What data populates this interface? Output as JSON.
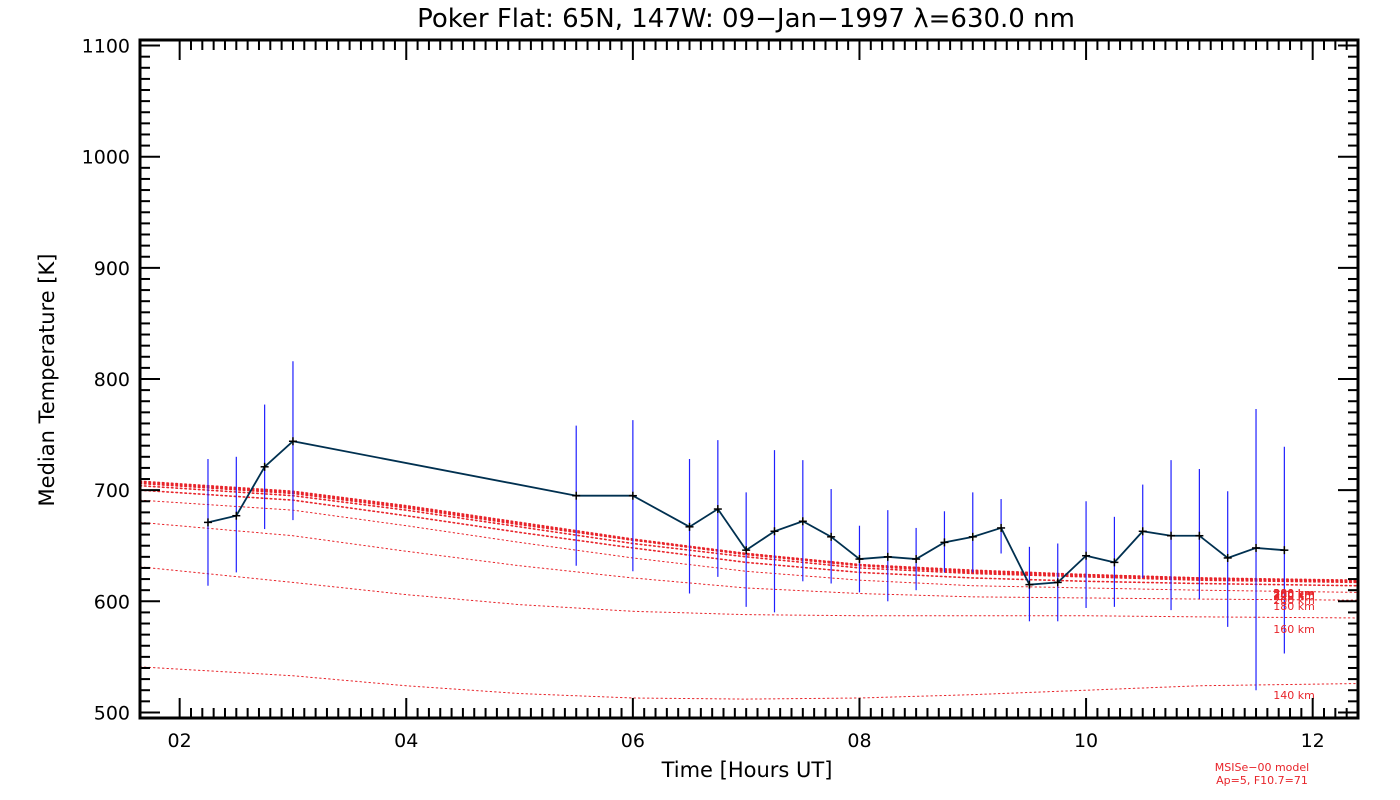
{
  "chart_data": {
    "type": "line",
    "title": "Poker Flat: 65N, 147W: 09−Jan−1997 λ=630.0 nm",
    "xlabel": "Time [Hours UT]",
    "ylabel": "Median Temperature [K]",
    "xlim": [
      1.65,
      12.4
    ],
    "ylim": [
      495,
      1105
    ],
    "x_ticks": [
      2,
      4,
      6,
      8,
      10,
      12
    ],
    "x_tick_labels": [
      "02",
      "04",
      "06",
      "08",
      "10",
      "12"
    ],
    "y_ticks": [
      500,
      600,
      700,
      800,
      900,
      1000,
      1100
    ],
    "y_tick_labels": [
      "500",
      "600",
      "700",
      "800",
      "900",
      "1000",
      "1100"
    ],
    "grid": false,
    "series": [
      {
        "color": "#003050",
        "x": [
          2.25,
          2.5,
          2.75,
          3.0,
          5.5,
          6.0,
          6.5,
          6.75,
          7.0,
          7.25,
          7.5,
          7.75,
          8.0,
          8.25,
          8.5,
          8.75,
          9.0,
          9.25,
          9.5,
          9.75,
          10.0,
          10.25,
          10.5,
          10.75,
          11.0,
          11.25,
          11.5,
          11.75
        ],
        "y": [
          671,
          677,
          721,
          744,
          695,
          695,
          667,
          683,
          646,
          663,
          672,
          658,
          638,
          640,
          638,
          653,
          658,
          666,
          615,
          617,
          641,
          635,
          663,
          659,
          659,
          639,
          648,
          646
        ],
        "err_lo": [
          614,
          626,
          665,
          673,
          632,
          627,
          607,
          622,
          595,
          590,
          618,
          616,
          608,
          600,
          610,
          626,
          626,
          643,
          582,
          582,
          594,
          595,
          621,
          592,
          602,
          577,
          520,
          553
        ],
        "err_hi": [
          728,
          730,
          777,
          816,
          758,
          763,
          728,
          745,
          698,
          736,
          727,
          701,
          668,
          682,
          666,
          681,
          698,
          692,
          649,
          652,
          690,
          676,
          705,
          727,
          719,
          699,
          773,
          739
        ]
      }
    ],
    "model_curves": [
      {
        "label": "140 km",
        "color": "#e8242a",
        "style": "dotted",
        "x": [
          1.65,
          3,
          4,
          5,
          6,
          7,
          8,
          9,
          10,
          11,
          12.4
        ],
        "y": [
          541,
          533,
          524,
          517,
          513,
          512,
          513,
          516,
          520,
          524,
          526
        ]
      },
      {
        "label": "160 km",
        "color": "#e8242a",
        "style": "dotted",
        "x": [
          1.65,
          3,
          4,
          5,
          6,
          7,
          8,
          9,
          10,
          11,
          12.4
        ],
        "y": [
          631,
          617,
          606,
          597,
          591,
          588,
          587,
          587,
          587,
          586,
          585
        ]
      },
      {
        "label": "180 km",
        "color": "#e8242a",
        "style": "dotted",
        "x": [
          1.65,
          3,
          4,
          5,
          6,
          7,
          8,
          9,
          10,
          11,
          12.4
        ],
        "y": [
          671,
          659,
          645,
          632,
          621,
          612,
          607,
          604,
          603,
          602,
          601
        ]
      },
      {
        "label": "200 km",
        "color": "#e8242a",
        "style": "dotted",
        "x": [
          1.65,
          3,
          4,
          5,
          6,
          7,
          8,
          9,
          10,
          11,
          12.4
        ],
        "y": [
          691,
          682,
          668,
          653,
          639,
          627,
          619,
          614,
          612,
          610,
          608
        ]
      },
      {
        "label": "220 km",
        "color": "#e8242a",
        "style": "dotted",
        "x": [
          1.65,
          3,
          4,
          5,
          6,
          7,
          8,
          9,
          10,
          11,
          12.4
        ],
        "y": [
          700,
          691,
          677,
          662,
          648,
          635,
          626,
          621,
          618,
          616,
          614
        ]
      },
      {
        "label": "240 km",
        "color": "#e8242a",
        "style": "dotted",
        "x": [
          1.65,
          3,
          4,
          5,
          6,
          7,
          8,
          9,
          10,
          11,
          12.4
        ],
        "y": [
          704,
          695,
          682,
          667,
          652,
          640,
          630,
          625,
          622,
          619,
          617
        ]
      },
      {
        "label": "260 km",
        "color": "#e8242a",
        "style": "dotted",
        "x": [
          1.65,
          3,
          4,
          5,
          6,
          7,
          8,
          9,
          10,
          11,
          12.4
        ],
        "y": [
          706,
          697,
          684,
          669,
          655,
          642,
          632,
          626,
          623,
          620,
          618
        ]
      },
      {
        "label": "280 km",
        "color": "#e8242a",
        "style": "dotted",
        "x": [
          1.65,
          3,
          4,
          5,
          6,
          7,
          8,
          9,
          10,
          11,
          12.4
        ],
        "y": [
          707,
          698,
          685,
          670,
          655,
          643,
          633,
          627,
          624,
          621,
          618
        ]
      },
      {
        "label": "300 km",
        "color": "#e8242a",
        "style": "dotted",
        "x": [
          1.65,
          3,
          4,
          5,
          6,
          7,
          8,
          9,
          10,
          11,
          12.4
        ],
        "y": [
          708,
          699,
          686,
          671,
          656,
          643,
          633,
          628,
          624,
          621,
          619
        ]
      }
    ],
    "model_note_line1": "MSISe−00 model",
    "model_note_line2": "Ap=5, F10.7=71"
  },
  "colors": {
    "data_line": "#003050",
    "error_bar": "#2020ff",
    "model": "#e8242a",
    "axes": "#000000"
  }
}
